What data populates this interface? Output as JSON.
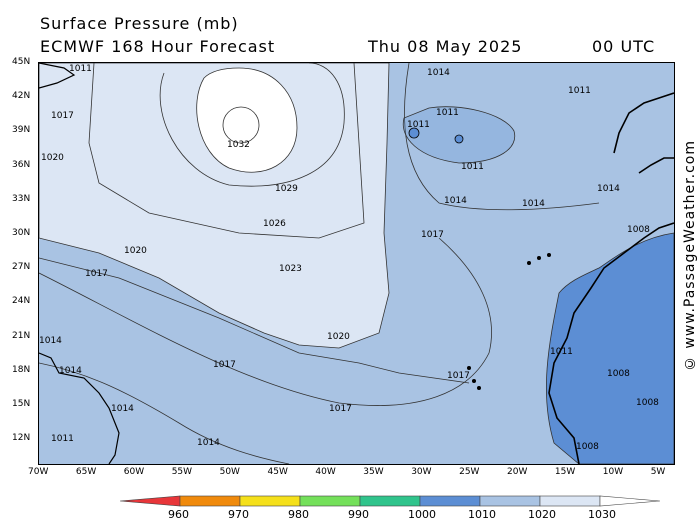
{
  "header": {
    "title": "Surface Pressure (mb)",
    "model": "ECMWF 168 Hour Forecast",
    "date": "Thu 08 May 2025",
    "time": "00 UTC"
  },
  "watermark": "© www.PassageWeather.com",
  "axes": {
    "lat_labels": [
      "45N",
      "42N",
      "39N",
      "36N",
      "33N",
      "30N",
      "27N",
      "24N",
      "21N",
      "18N",
      "15N",
      "12N"
    ],
    "lon_labels": [
      "70W",
      "65W",
      "60W",
      "55W",
      "50W",
      "45W",
      "40W",
      "35W",
      "30W",
      "25W",
      "20W",
      "15W",
      "10W",
      "5W"
    ]
  },
  "isobar_labels": {
    "high_center": "1032",
    "l1029": "1029",
    "l1026": "1026",
    "l1023": "1023",
    "l1020a": "1020",
    "l1020b": "1020",
    "l1020c": "1020",
    "l1017a": "1017",
    "l1017b": "1017",
    "l1017c": "1017",
    "l1017d": "1017",
    "l1017e": "1017",
    "l1017f": "1017",
    "l1014a": "1014",
    "l1014b": "1014",
    "l1014c": "1014",
    "l1014d": "1014",
    "l1014e": "1014",
    "l1014f": "1014",
    "l1014g": "1014",
    "l1014h": "1014",
    "l1011a": "1011",
    "l1011b": "1011",
    "l1011c": "1011",
    "l1011d": "1011",
    "l1011e": "1011",
    "l1011f": "1011",
    "l1011g": "1011",
    "l1008a": "1008",
    "l1008b": "1008",
    "l1008c": "1008",
    "l1008d": "1008"
  },
  "colorbar": {
    "labels": [
      "960",
      "970",
      "980",
      "990",
      "1000",
      "1010",
      "1020",
      "1030"
    ],
    "colors": [
      "#e8363a",
      "#f08a0c",
      "#f5e01a",
      "#74e05a",
      "#30c48c",
      "#5c8ed4",
      "#a9c3e3",
      "#dce6f4",
      "#ffffff"
    ]
  }
}
